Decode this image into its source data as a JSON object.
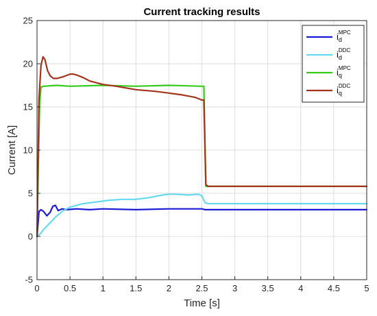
{
  "chart_data": {
    "type": "line",
    "title": "Current tracking results",
    "xlabel": "Time [s]",
    "ylabel": "Current [A]",
    "xlim": [
      0,
      5
    ],
    "ylim": [
      -5,
      25
    ],
    "xticks": [
      0,
      0.5,
      1,
      1.5,
      2,
      2.5,
      3,
      3.5,
      4,
      4.5,
      5
    ],
    "xtick_labels": [
      "0",
      "0.5",
      "1",
      "1.5",
      "2",
      "2.5",
      "3",
      "3.5",
      "4",
      "4.5",
      "5"
    ],
    "yticks": [
      -5,
      0,
      5,
      10,
      15,
      20,
      25
    ],
    "ytick_labels": [
      "-5",
      "0",
      "5",
      "10",
      "15",
      "20",
      "25"
    ],
    "grid": true,
    "legend_position": "top-right",
    "series": [
      {
        "name": "i_d^MPC",
        "legend_main": "i",
        "legend_sub": "d",
        "legend_sup": "MPC",
        "color": "#1a1ad6",
        "x": [
          0,
          0.03,
          0.06,
          0.1,
          0.15,
          0.2,
          0.24,
          0.28,
          0.32,
          0.38,
          0.45,
          0.6,
          0.8,
          1.0,
          1.5,
          2.0,
          2.5,
          2.55,
          3.0,
          4.0,
          5.0
        ],
        "y": [
          0,
          2.9,
          3.1,
          2.9,
          2.4,
          2.8,
          3.5,
          3.6,
          3.0,
          3.2,
          3.1,
          3.2,
          3.1,
          3.2,
          3.1,
          3.2,
          3.2,
          3.1,
          3.1,
          3.1,
          3.1
        ]
      },
      {
        "name": "i_d^DDC",
        "legend_main": "i",
        "legend_sub": "d",
        "legend_sup": "DDC",
        "color": "#66d9f0",
        "x": [
          0,
          0.05,
          0.1,
          0.2,
          0.3,
          0.4,
          0.5,
          0.7,
          0.9,
          1.1,
          1.3,
          1.5,
          1.7,
          1.9,
          2.0,
          2.1,
          2.3,
          2.45,
          2.5,
          2.55,
          2.6,
          3.0,
          4.0,
          5.0
        ],
        "y": [
          0,
          0.3,
          0.8,
          1.6,
          2.4,
          3.0,
          3.4,
          3.8,
          4.0,
          4.2,
          4.3,
          4.3,
          4.5,
          4.8,
          4.9,
          4.9,
          4.8,
          4.9,
          4.7,
          3.9,
          3.8,
          3.8,
          3.8,
          3.8
        ]
      },
      {
        "name": "i_q^MPC",
        "legend_main": "i",
        "legend_sub": "q",
        "legend_sup": "MPC",
        "color": "#33cc1a",
        "x": [
          0,
          0.02,
          0.04,
          0.06,
          0.1,
          0.3,
          0.5,
          1.0,
          1.5,
          2.0,
          2.5,
          2.53,
          2.56,
          3.0,
          4.0,
          5.0
        ],
        "y": [
          0,
          8.0,
          15.5,
          17.3,
          17.4,
          17.5,
          17.4,
          17.5,
          17.4,
          17.5,
          17.4,
          17.4,
          5.8,
          5.8,
          5.8,
          5.8
        ]
      },
      {
        "name": "i_q^DDC",
        "legend_main": "i",
        "legend_sub": "q",
        "legend_sup": "DDC",
        "color": "#a3331a",
        "x": [
          0,
          0.03,
          0.06,
          0.09,
          0.12,
          0.16,
          0.2,
          0.25,
          0.3,
          0.4,
          0.5,
          0.55,
          0.6,
          0.7,
          0.8,
          0.9,
          1.0,
          1.2,
          1.5,
          1.8,
          2.0,
          2.2,
          2.4,
          2.5,
          2.53,
          2.56,
          2.6,
          3.0,
          4.0,
          5.0
        ],
        "y": [
          0,
          16.0,
          19.8,
          20.8,
          20.5,
          19.2,
          18.6,
          18.3,
          18.3,
          18.5,
          18.8,
          18.8,
          18.7,
          18.4,
          18.0,
          17.8,
          17.6,
          17.4,
          17.0,
          16.8,
          16.6,
          16.4,
          16.1,
          15.8,
          15.8,
          6.0,
          5.8,
          5.8,
          5.8,
          5.8
        ]
      }
    ]
  }
}
